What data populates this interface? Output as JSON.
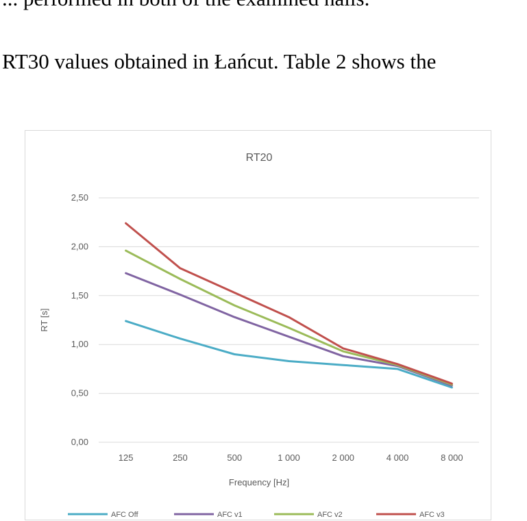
{
  "document": {
    "line1": "... performed in both of the examined halls.",
    "line2": "RT30 values obtained in Łańcut. Table 2 shows the"
  },
  "chart_data": {
    "type": "line",
    "title": "RT20",
    "xlabel": "Frequency [Hz]",
    "ylabel": "RT [s]",
    "categories": [
      "125",
      "250",
      "500",
      "1 000",
      "2 000",
      "4 000",
      "8 000"
    ],
    "yticks": [
      "0,00",
      "0,50",
      "1,00",
      "1,50",
      "2,00",
      "2,50"
    ],
    "ylim": [
      0,
      2.5
    ],
    "grid": true,
    "legend": "bottom",
    "series": [
      {
        "name": "AFC Off",
        "color": "#4bacc6",
        "values": [
          1.24,
          1.06,
          0.9,
          0.83,
          0.79,
          0.75,
          0.56
        ]
      },
      {
        "name": "AFC v1",
        "color": "#8064a2",
        "values": [
          1.73,
          1.51,
          1.28,
          1.08,
          0.88,
          0.78,
          0.58
        ]
      },
      {
        "name": "AFC v2",
        "color": "#9bbb59",
        "values": [
          1.96,
          1.67,
          1.4,
          1.17,
          0.93,
          0.79,
          0.59
        ]
      },
      {
        "name": "AFC v3",
        "color": "#c0504d",
        "values": [
          2.24,
          1.78,
          1.53,
          1.28,
          0.96,
          0.8,
          0.6
        ]
      }
    ]
  }
}
